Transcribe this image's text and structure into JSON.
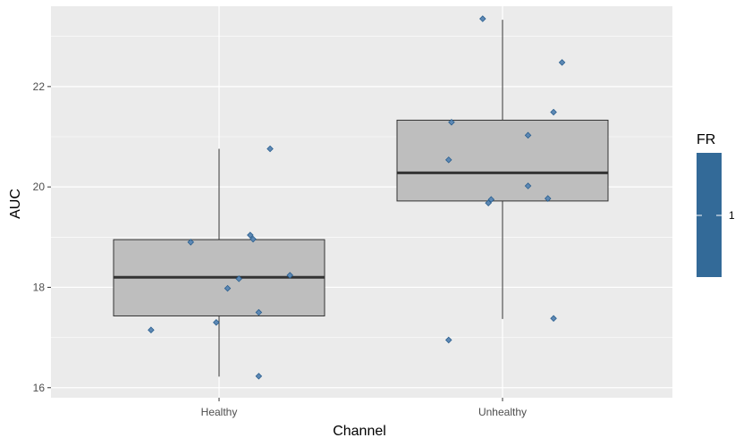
{
  "chart_data": {
    "type": "box",
    "xlabel": "Channel",
    "ylabel": "AUC",
    "ylim": [
      15.8,
      23.6
    ],
    "yticks": [
      16,
      18,
      20,
      22
    ],
    "categories": [
      "Healthy",
      "Unhealthy"
    ],
    "boxes": [
      {
        "category": "Healthy",
        "whisker_low": 16.22,
        "q1": 17.43,
        "median": 18.2,
        "q3": 18.95,
        "whisker_high": 20.76
      },
      {
        "category": "Unhealthy",
        "whisker_low": 17.37,
        "q1": 19.72,
        "median": 20.28,
        "q3": 21.33,
        "whisker_high": 23.33
      }
    ],
    "points": [
      {
        "category": "Healthy",
        "jitter": -0.24,
        "value": 17.15
      },
      {
        "category": "Healthy",
        "jitter": -0.1,
        "value": 18.9
      },
      {
        "category": "Healthy",
        "jitter": -0.01,
        "value": 17.3
      },
      {
        "category": "Healthy",
        "jitter": 0.03,
        "value": 17.98
      },
      {
        "category": "Healthy",
        "jitter": 0.07,
        "value": 18.17
      },
      {
        "category": "Healthy",
        "jitter": 0.11,
        "value": 19.04
      },
      {
        "category": "Healthy",
        "jitter": 0.12,
        "value": 18.96
      },
      {
        "category": "Healthy",
        "jitter": 0.14,
        "value": 17.5
      },
      {
        "category": "Healthy",
        "jitter": 0.14,
        "value": 16.23
      },
      {
        "category": "Healthy",
        "jitter": 0.18,
        "value": 20.76
      },
      {
        "category": "Healthy",
        "jitter": 0.25,
        "value": 18.24
      },
      {
        "category": "Unhealthy",
        "jitter": -0.19,
        "value": 16.95
      },
      {
        "category": "Unhealthy",
        "jitter": -0.19,
        "value": 20.54
      },
      {
        "category": "Unhealthy",
        "jitter": -0.18,
        "value": 21.29
      },
      {
        "category": "Unhealthy",
        "jitter": -0.04,
        "value": 19.75
      },
      {
        "category": "Unhealthy",
        "jitter": -0.05,
        "value": 19.68
      },
      {
        "category": "Unhealthy",
        "jitter": -0.07,
        "value": 23.35
      },
      {
        "category": "Unhealthy",
        "jitter": 0.09,
        "value": 21.03
      },
      {
        "category": "Unhealthy",
        "jitter": 0.09,
        "value": 20.02
      },
      {
        "category": "Unhealthy",
        "jitter": 0.16,
        "value": 19.77
      },
      {
        "category": "Unhealthy",
        "jitter": 0.18,
        "value": 21.49
      },
      {
        "category": "Unhealthy",
        "jitter": 0.18,
        "value": 17.38
      },
      {
        "category": "Unhealthy",
        "jitter": 0.21,
        "value": 22.48
      }
    ],
    "grid": true,
    "legend": {
      "title": "FR",
      "tick_label": "1",
      "placement": "right"
    },
    "colors": {
      "panel": "#ebebeb",
      "grid": "#ffffff",
      "box_fill": "#bebebe",
      "box_stroke": "#333333",
      "point_fill": "#5d88b4",
      "point_stroke": "#2a5f8f",
      "legend_bar": "#336a98"
    }
  }
}
